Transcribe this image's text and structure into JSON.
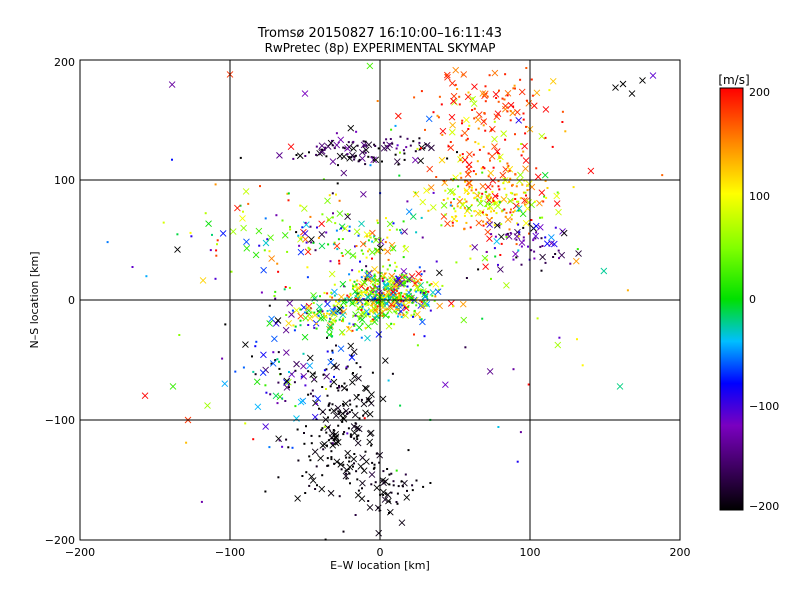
{
  "chart_data": {
    "type": "scatter",
    "title": "Tromsø 20150827 16:10:00–16:11:43",
    "subtitle": "RwPretec (8p) EXPERIMENTAL SKYMAP",
    "xlabel": "E–W location [km]",
    "ylabel": "N–S location [km]",
    "xlim": [
      -200,
      200
    ],
    "ylim": [
      -200,
      200
    ],
    "xticks": [
      "−200",
      "−100",
      "0",
      "100",
      "200"
    ],
    "yticks": [
      "−200",
      "−100",
      "0",
      "100",
      "200"
    ],
    "grid": true,
    "colorbar": {
      "label": "[m/s]",
      "range": [
        -200,
        200
      ],
      "ticks": [
        "200",
        "100",
        "0",
        "−100",
        "−200"
      ]
    },
    "clusters": [
      {
        "x": 5,
        "y": 5,
        "sx": 14,
        "sy": 10,
        "n": 420,
        "vmean": 60,
        "vspread": 150
      },
      {
        "x": -30,
        "y": -10,
        "sx": 18,
        "sy": 8,
        "n": 150,
        "vmean": 40,
        "vspread": 160
      },
      {
        "x": -10,
        "y": 125,
        "sx": 25,
        "sy": 6,
        "n": 110,
        "vmean": -180,
        "vspread": 60
      },
      {
        "x": 75,
        "y": 110,
        "sx": 22,
        "sy": 30,
        "n": 220,
        "vmean": 160,
        "vspread": 90
      },
      {
        "x": 75,
        "y": 80,
        "sx": 20,
        "sy": 10,
        "n": 120,
        "vmean": 90,
        "vspread": 70
      },
      {
        "x": -25,
        "y": -110,
        "sx": 14,
        "sy": 30,
        "n": 200,
        "vmean": -200,
        "vspread": 15
      },
      {
        "x": 5,
        "y": -160,
        "sx": 14,
        "sy": 14,
        "n": 60,
        "vmean": -195,
        "vspread": 20
      },
      {
        "x": 100,
        "y": 45,
        "sx": 14,
        "sy": 10,
        "n": 60,
        "vmean": -140,
        "vspread": 70
      },
      {
        "x": -40,
        "y": 55,
        "sx": 18,
        "sy": 15,
        "n": 80,
        "vmean": -10,
        "vspread": 180
      },
      {
        "x": 0,
        "y": 50,
        "sx": 10,
        "sy": 8,
        "n": 40,
        "vmean": 70,
        "vspread": 120
      },
      {
        "x": -60,
        "y": -60,
        "sx": 20,
        "sy": 25,
        "n": 90,
        "vmean": -120,
        "vspread": 150
      },
      {
        "x": 75,
        "y": 170,
        "sx": 25,
        "sy": 15,
        "n": 60,
        "vmean": 180,
        "vspread": 30
      },
      {
        "x": 40,
        "y": 40,
        "sx": 40,
        "sy": 40,
        "n": 60,
        "vmean": 0,
        "vspread": 200
      },
      {
        "x": -80,
        "y": 60,
        "sx": 30,
        "sy": 30,
        "n": 40,
        "vmean": 100,
        "vspread": 150
      },
      {
        "x": 0,
        "y": 0,
        "sx": 90,
        "sy": 90,
        "n": 80,
        "vmean": 0,
        "vspread": 200
      }
    ],
    "singles": [
      {
        "x": 162,
        "y": 180,
        "v": -200
      },
      {
        "x": 168,
        "y": 172,
        "v": -200
      },
      {
        "x": 175,
        "y": 183,
        "v": -200
      },
      {
        "x": 182,
        "y": 187,
        "v": -110
      },
      {
        "x": 157,
        "y": 177,
        "v": -200
      },
      {
        "x": -135,
        "y": 42,
        "v": -200
      },
      {
        "x": -138,
        "y": -72,
        "v": 20
      },
      {
        "x": -115,
        "y": -88,
        "v": 60
      },
      {
        "x": -128,
        "y": -100,
        "v": 180
      },
      {
        "x": -100,
        "y": 188,
        "v": 180
      },
      {
        "x": -50,
        "y": 172,
        "v": -120
      },
      {
        "x": 160,
        "y": -72,
        "v": -20
      }
    ]
  }
}
